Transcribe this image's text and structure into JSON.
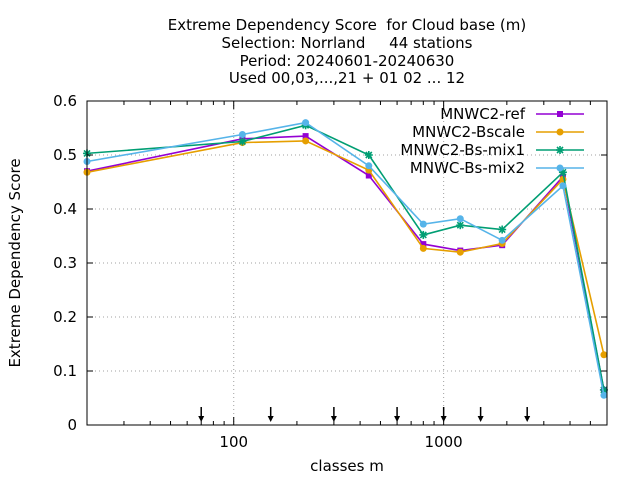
{
  "chart_data": {
    "type": "line",
    "title_lines": [
      "Extreme Dependency Score  for Cloud base (m)",
      "Selection: Norrland     44 stations",
      "Period: 20240601-20240630",
      "Used 00,03,...,21 + 01 02 ... 12"
    ],
    "xlabel": "classes m",
    "ylabel": "Extreme Dependency Score",
    "x_scale": "log",
    "xlim": [
      20,
      6000
    ],
    "ylim": [
      0,
      0.6
    ],
    "grid": true,
    "legend_position": "top-right",
    "x_ticks": [
      100,
      1000
    ],
    "x_tick_labels": [
      "100",
      "1000"
    ],
    "y_ticks": [
      0,
      0.1,
      0.2,
      0.3,
      0.4,
      0.5,
      0.6
    ],
    "y_tick_labels": [
      "0",
      "0.1",
      "0.2",
      "0.3",
      "0.4",
      "0.5",
      "0.6"
    ],
    "class_markers": [
      70,
      150,
      300,
      600,
      1000,
      1500,
      2500
    ],
    "x": [
      20,
      110,
      220,
      440,
      800,
      1200,
      1900,
      3700,
      5800
    ],
    "series": [
      {
        "name": "MNWC2-ref",
        "color": "#9400d3",
        "marker": "square",
        "values": [
          0.47,
          0.53,
          0.535,
          0.462,
          0.335,
          0.323,
          0.333,
          0.46,
          0.065
        ]
      },
      {
        "name": "MNWC2-Bscale",
        "color": "#e69f00",
        "marker": "circle",
        "values": [
          0.468,
          0.523,
          0.526,
          0.472,
          0.327,
          0.32,
          0.336,
          0.455,
          0.13
        ]
      },
      {
        "name": "MNWC2-Bs-mix1",
        "color": "#009e73",
        "marker": "star",
        "values": [
          0.503,
          0.525,
          0.555,
          0.5,
          0.352,
          0.37,
          0.362,
          0.468,
          0.065
        ]
      },
      {
        "name": "MNWC-Bs-mix2",
        "color": "#56b4e9",
        "marker": "circle",
        "values": [
          0.488,
          0.538,
          0.56,
          0.48,
          0.372,
          0.382,
          0.342,
          0.443,
          0.055
        ]
      }
    ]
  }
}
